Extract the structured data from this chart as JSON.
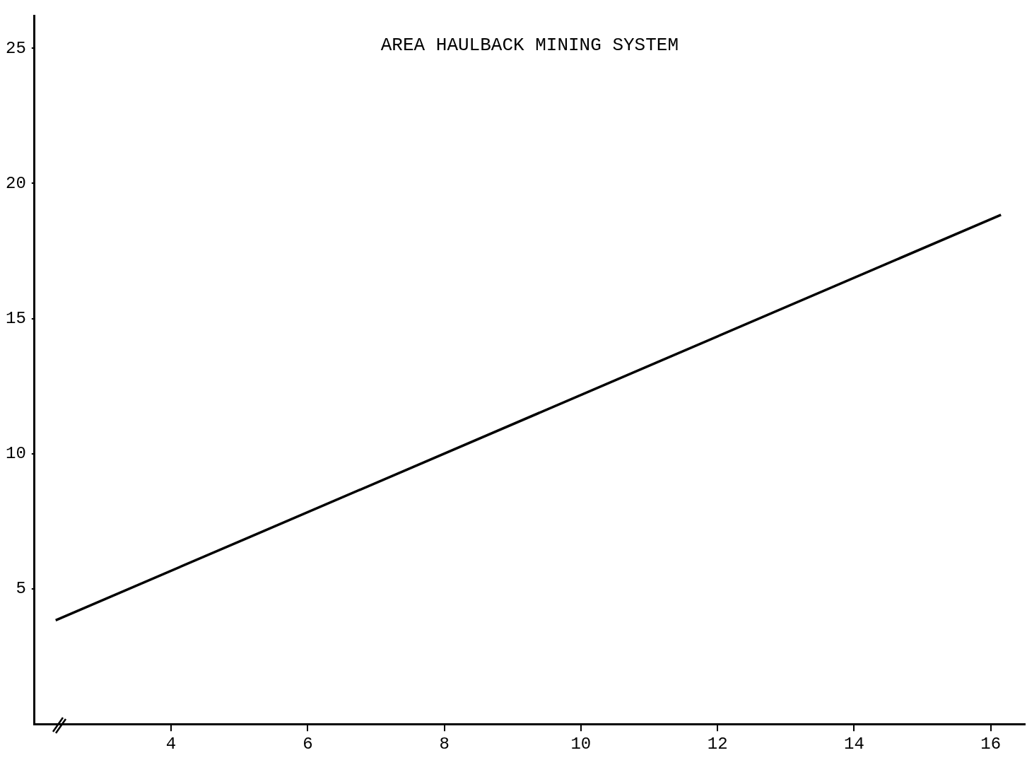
{
  "chart_data": {
    "type": "line",
    "title": "AREA HAULBACK MINING SYSTEM",
    "x": [
      2.31,
      16.15
    ],
    "series": [
      {
        "color": "#000000",
        "values": [
          3.84,
          18.84
        ]
      }
    ],
    "xlim": [
      2,
      16.5
    ],
    "xticks": [
      4,
      6,
      8,
      10,
      12,
      14,
      16
    ],
    "ylim": [
      0,
      26.2
    ],
    "yticks": [
      5,
      10,
      15,
      20,
      25
    ],
    "grid": false,
    "legend": false
  }
}
